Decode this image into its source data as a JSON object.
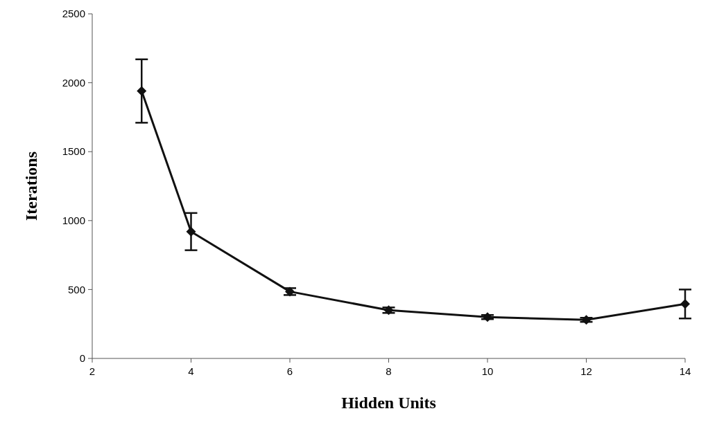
{
  "chart_data": {
    "type": "line",
    "xlabel": "Hidden Units",
    "ylabel": "Iterations",
    "x": [
      3,
      4,
      6,
      8,
      10,
      12,
      14
    ],
    "values": [
      1940,
      920,
      485,
      350,
      300,
      280,
      395
    ],
    "errors": [
      230,
      135,
      25,
      20,
      15,
      15,
      105
    ],
    "color": "#111111",
    "marker": "diamond",
    "line_style": "solid",
    "xlim": [
      2,
      14
    ],
    "xticks": [
      2,
      4,
      6,
      8,
      10,
      12,
      14
    ],
    "ylim": [
      0,
      2500
    ],
    "yticks": [
      0,
      500,
      1000,
      1500,
      2000,
      2500
    ],
    "grid": false
  }
}
